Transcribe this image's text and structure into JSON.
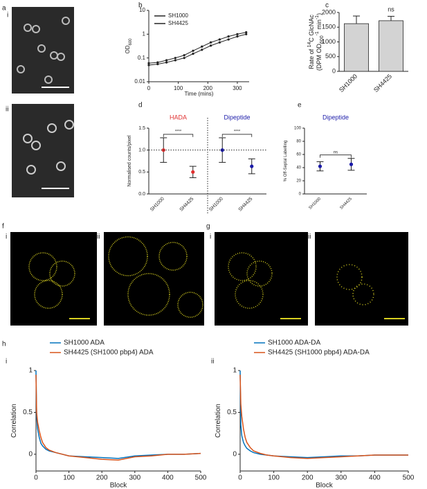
{
  "figure": {
    "panel_labels": [
      "a",
      "i",
      "ii",
      "b",
      "c",
      "d",
      "e",
      "f",
      "i",
      "ii",
      "g",
      "i",
      "ii",
      "h",
      "i",
      "ii"
    ]
  },
  "chart_data": [
    {
      "type": "line",
      "ylog": true,
      "xlim": [
        0,
        340
      ],
      "xticks": [
        0,
        100,
        200,
        300
      ],
      "ylim": [
        0.01,
        10
      ],
      "yticks": [
        0.01,
        0.1,
        1,
        10
      ],
      "xlabel": "Time (mins)",
      "ylabel": [
        [
          {
            "text": "OD"
          },
          {
            "text": "600",
            "sub": true
          }
        ]
      ],
      "legend": "upper left",
      "markers": true,
      "x": [
        0,
        30,
        60,
        90,
        120,
        150,
        180,
        210,
        240,
        270,
        300,
        330
      ],
      "series": [
        {
          "name": "SH1000",
          "color": "#222222",
          "values": [
            0.06,
            0.065,
            0.08,
            0.1,
            0.13,
            0.2,
            0.3,
            0.45,
            0.6,
            0.8,
            1.0,
            1.2
          ]
        },
        {
          "name": "SH4425",
          "color": "#222222",
          "values": [
            0.05,
            0.055,
            0.065,
            0.08,
            0.1,
            0.15,
            0.22,
            0.33,
            0.45,
            0.6,
            0.8,
            1.0
          ]
        }
      ]
    },
    {
      "type": "bar",
      "categories": [
        "SH1000",
        "SH4425"
      ],
      "values": [
        1620,
        1720
      ],
      "errors": [
        260,
        150
      ],
      "color": "#d3d3d3",
      "ylim": [
        0,
        2000
      ],
      "yticks": [
        0,
        500,
        1000,
        1500,
        2000
      ],
      "ylabel": [
        [
          {
            "text": "Rate of "
          },
          {
            "text": "14",
            "sup": true
          },
          {
            "text": "C GlcNAc"
          }
        ],
        [
          {
            "text": "(DPM OD"
          },
          {
            "text": "600",
            "sub": true
          },
          {
            "text": "-1",
            "sup": true
          },
          {
            "text": " min"
          },
          {
            "text": "-1",
            "sup": true
          },
          {
            "text": ")"
          }
        ]
      ],
      "annotations": [
        "ns"
      ]
    },
    {
      "type": "dot",
      "categories": [
        "SH1000",
        "SH4425",
        "SH1000",
        "SH4425"
      ],
      "values": [
        1.0,
        0.5,
        1.0,
        0.63
      ],
      "errors": [
        0.28,
        0.13,
        0.28,
        0.17
      ],
      "colors": [
        "#e03030",
        "#e03030",
        "#1a1aa8",
        "#1a1aa8"
      ],
      "reference_line": 1,
      "ylim": [
        0,
        1.5
      ],
      "yticks": [
        {
          "value": 0,
          "label": "0.0"
        },
        {
          "value": 0.5,
          "label": "0.5"
        },
        {
          "value": 1,
          "label": "1.0"
        },
        {
          "value": 1.5,
          "label": "1.5"
        }
      ],
      "ylabel": [
        [
          {
            "text": "Normalised counts/pixel"
          }
        ]
      ],
      "group_labels": [
        {
          "text": "HADA",
          "color": "#e03030"
        },
        {
          "text": "Dipeptide",
          "color": "#1a1aa8"
        }
      ],
      "annotations": [
        "****",
        "****"
      ]
    },
    {
      "type": "dot",
      "categories": [
        "SH1000",
        "SH4425"
      ],
      "values": [
        42,
        45
      ],
      "errors": [
        7,
        9
      ],
      "colors": [
        "#1a1aa8",
        "#1a1aa8"
      ],
      "ylim": [
        0,
        100
      ],
      "yticks": [
        0,
        20,
        40,
        60,
        80,
        100
      ],
      "ylabel": [
        [
          {
            "text": "% Off-Septal Labelling"
          }
        ]
      ],
      "group_labels": [
        {
          "text": "Dipeptide",
          "color": "#1a1aa8"
        }
      ],
      "annotations": [
        "ns"
      ]
    },
    {
      "type": "line",
      "xlim": [
        0,
        500
      ],
      "xticks": [
        0,
        100,
        200,
        300,
        400,
        500
      ],
      "ylim": [
        -0.2,
        1
      ],
      "yticks": [
        0,
        0.5,
        1
      ],
      "xlabel": "Block",
      "ylabel": [
        [
          {
            "text": "Correlation"
          }
        ]
      ],
      "legend": "above",
      "x": [
        0,
        2,
        5,
        10,
        15,
        20,
        30,
        40,
        60,
        80,
        100,
        150,
        200,
        250,
        300,
        350,
        400,
        450,
        500
      ],
      "series": [
        {
          "name": "SH1000 ADA",
          "color": "#0072bd",
          "values": [
            1.0,
            0.45,
            0.3,
            0.2,
            0.13,
            0.1,
            0.06,
            0.04,
            0.02,
            0.0,
            -0.02,
            -0.03,
            -0.04,
            -0.05,
            -0.02,
            -0.01,
            0.0,
            0.0,
            0.01
          ]
        },
        {
          "name": "SH4425 (SH1000 pbp4) ADA",
          "color": "#d95319",
          "values": [
            0.95,
            0.5,
            0.38,
            0.28,
            0.2,
            0.14,
            0.08,
            0.05,
            0.02,
            0.0,
            -0.02,
            -0.04,
            -0.06,
            -0.07,
            -0.03,
            -0.02,
            0.0,
            0.0,
            0.01
          ]
        }
      ]
    },
    {
      "type": "line",
      "xlim": [
        0,
        500
      ],
      "xticks": [
        0,
        100,
        200,
        300,
        400,
        500
      ],
      "ylim": [
        -0.2,
        1
      ],
      "yticks": [
        0,
        0.5,
        1
      ],
      "xlabel": "Block",
      "ylabel": [
        [
          {
            "text": "Correlation"
          }
        ]
      ],
      "legend": "above",
      "x": [
        0,
        2,
        5,
        10,
        15,
        20,
        30,
        40,
        60,
        80,
        100,
        150,
        200,
        250,
        300,
        350,
        400,
        450,
        500
      ],
      "series": [
        {
          "name": "SH1000 ADA-DA",
          "color": "#0072bd",
          "values": [
            1.0,
            0.35,
            0.22,
            0.14,
            0.1,
            0.07,
            0.04,
            0.02,
            0.0,
            -0.01,
            -0.02,
            -0.03,
            -0.04,
            -0.03,
            -0.02,
            -0.02,
            -0.01,
            -0.01,
            -0.01
          ]
        },
        {
          "name": "SH4425 (SH1000 pbp4) ADA-DA",
          "color": "#d95319",
          "values": [
            0.95,
            0.6,
            0.45,
            0.3,
            0.2,
            0.14,
            0.08,
            0.04,
            0.01,
            -0.01,
            -0.02,
            -0.04,
            -0.05,
            -0.04,
            -0.03,
            -0.02,
            -0.01,
            -0.01,
            -0.01
          ]
        }
      ]
    }
  ]
}
